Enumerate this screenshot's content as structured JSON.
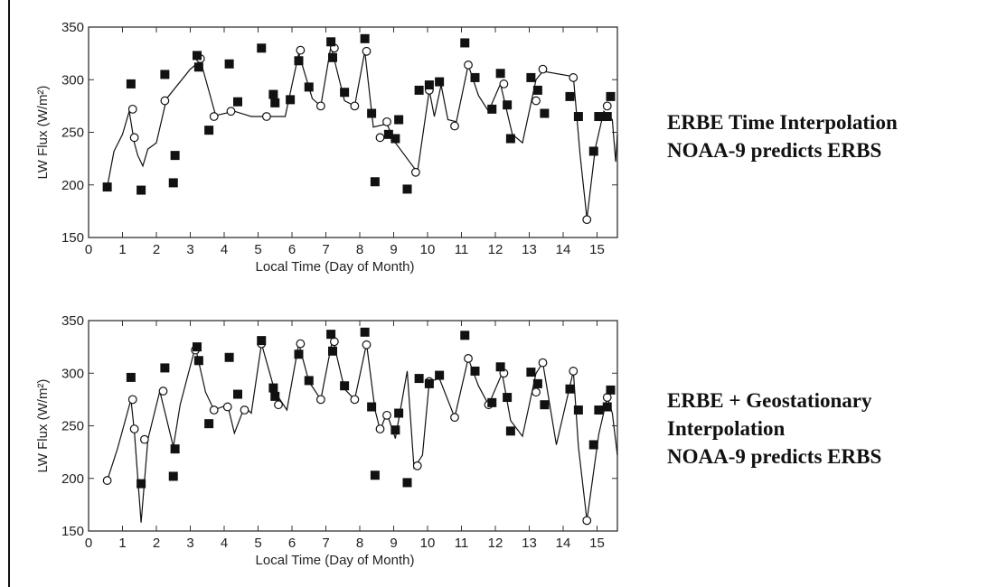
{
  "figure": {
    "captions": [
      {
        "lines": [
          "ERBE Time Interpolation",
          "NOAA-9  predicts ERBS"
        ]
      },
      {
        "lines": [
          "ERBE + Geostationary",
          "Interpolation",
          "NOAA-9  predicts ERBS"
        ]
      }
    ]
  },
  "colors": {
    "ink": "#111111",
    "frame": "#333333",
    "background": "#ffffff"
  },
  "chart_data": [
    {
      "type": "scatter",
      "title": "",
      "xlabel": "Local Time (Day of Month)",
      "ylabel": "LW Flux (W/m²)",
      "xlim": [
        0,
        15.6
      ],
      "ylim": [
        150,
        350
      ],
      "xticks": [
        "0",
        "1",
        "2",
        "3",
        "4",
        "5",
        "6",
        "7",
        "8",
        "9",
        "10",
        "11",
        "12",
        "13",
        "14",
        "15"
      ],
      "yticks": [
        "150",
        "200",
        "250",
        "300",
        "350"
      ],
      "grid": false,
      "series": [
        {
          "marker": "filled-square",
          "points": [
            [
              0.55,
              198
            ],
            [
              1.25,
              296
            ],
            [
              1.55,
              195
            ],
            [
              2.25,
              305
            ],
            [
              2.5,
              202
            ],
            [
              2.55,
              228
            ],
            [
              3.2,
              323
            ],
            [
              3.25,
              312
            ],
            [
              3.55,
              252
            ],
            [
              4.15,
              315
            ],
            [
              4.4,
              279
            ],
            [
              5.1,
              330
            ],
            [
              5.45,
              286
            ],
            [
              5.5,
              278
            ],
            [
              5.95,
              281
            ],
            [
              6.2,
              318
            ],
            [
              6.5,
              293
            ],
            [
              7.15,
              336
            ],
            [
              7.2,
              321
            ],
            [
              7.55,
              288
            ],
            [
              8.15,
              339
            ],
            [
              8.35,
              268
            ],
            [
              8.45,
              203
            ],
            [
              8.85,
              248
            ],
            [
              9.05,
              244
            ],
            [
              9.15,
              262
            ],
            [
              9.4,
              196
            ],
            [
              9.75,
              290
            ],
            [
              10.05,
              295
            ],
            [
              10.35,
              298
            ],
            [
              11.1,
              335
            ],
            [
              11.4,
              302
            ],
            [
              11.9,
              272
            ],
            [
              12.15,
              306
            ],
            [
              12.35,
              276
            ],
            [
              12.45,
              244
            ],
            [
              13.05,
              302
            ],
            [
              13.25,
              290
            ],
            [
              13.45,
              268
            ],
            [
              14.2,
              284
            ],
            [
              14.45,
              265
            ],
            [
              14.9,
              232
            ],
            [
              15.05,
              265
            ],
            [
              15.3,
              265
            ],
            [
              15.4,
              284
            ]
          ]
        },
        {
          "marker": "open-circle",
          "points": [
            [
              1.3,
              272
            ],
            [
              1.35,
              245
            ],
            [
              2.25,
              280
            ],
            [
              3.3,
              320
            ],
            [
              3.7,
              265
            ],
            [
              4.2,
              270
            ],
            [
              5.25,
              265
            ],
            [
              6.25,
              328
            ],
            [
              6.85,
              275
            ],
            [
              7.25,
              330
            ],
            [
              7.85,
              275
            ],
            [
              8.2,
              327
            ],
            [
              8.6,
              245
            ],
            [
              8.8,
              260
            ],
            [
              9.65,
              212
            ],
            [
              10.05,
              290
            ],
            [
              10.8,
              256
            ],
            [
              11.2,
              314
            ],
            [
              12.25,
              296
            ],
            [
              13.2,
              280
            ],
            [
              13.4,
              310
            ],
            [
              14.3,
              302
            ],
            [
              14.7,
              167
            ],
            [
              15.3,
              275
            ]
          ]
        },
        {
          "marker": "line",
          "points": [
            [
              0.55,
              198
            ],
            [
              0.75,
              232
            ],
            [
              1.0,
              248
            ],
            [
              1.2,
              270
            ],
            [
              1.35,
              240
            ],
            [
              1.45,
              228
            ],
            [
              1.6,
              218
            ],
            [
              1.75,
              234
            ],
            [
              2.0,
              240
            ],
            [
              2.3,
              282
            ],
            [
              3.0,
              310
            ],
            [
              3.3,
              318
            ],
            [
              3.5,
              295
            ],
            [
              3.75,
              266
            ],
            [
              4.3,
              270
            ],
            [
              4.8,
              265
            ],
            [
              5.8,
              265
            ],
            [
              6.2,
              325
            ],
            [
              6.6,
              282
            ],
            [
              6.85,
              275
            ],
            [
              7.15,
              332
            ],
            [
              7.55,
              280
            ],
            [
              7.85,
              275
            ],
            [
              8.15,
              327
            ],
            [
              8.4,
              255
            ],
            [
              8.8,
              258
            ],
            [
              9.05,
              240
            ],
            [
              9.7,
              212
            ],
            [
              10.05,
              290
            ],
            [
              10.2,
              265
            ],
            [
              10.4,
              295
            ],
            [
              10.6,
              262
            ],
            [
              10.85,
              260
            ],
            [
              11.2,
              314
            ],
            [
              11.5,
              285
            ],
            [
              11.8,
              270
            ],
            [
              12.15,
              296
            ],
            [
              12.5,
              248
            ],
            [
              12.8,
              240
            ],
            [
              13.2,
              300
            ],
            [
              13.4,
              308
            ],
            [
              14.3,
              303
            ],
            [
              14.5,
              228
            ],
            [
              14.7,
              168
            ],
            [
              14.95,
              235
            ],
            [
              15.2,
              270
            ],
            [
              15.45,
              262
            ],
            [
              15.55,
              222
            ],
            [
              15.6,
              248
            ]
          ]
        }
      ]
    },
    {
      "type": "scatter",
      "title": "",
      "xlabel": "Local Time (Day of Month)",
      "ylabel": "LW Flux (W/m²)",
      "xlim": [
        0,
        15.6
      ],
      "ylim": [
        150,
        350
      ],
      "xticks": [
        "0",
        "1",
        "2",
        "3",
        "4",
        "5",
        "6",
        "7",
        "8",
        "9",
        "10",
        "11",
        "12",
        "13",
        "14",
        "15"
      ],
      "yticks": [
        "150",
        "200",
        "250",
        "300",
        "350"
      ],
      "grid": false,
      "series": [
        {
          "marker": "filled-square",
          "points": [
            [
              1.25,
              296
            ],
            [
              1.55,
              195
            ],
            [
              2.25,
              305
            ],
            [
              2.5,
              202
            ],
            [
              2.55,
              228
            ],
            [
              3.2,
              325
            ],
            [
              3.25,
              312
            ],
            [
              3.55,
              252
            ],
            [
              4.15,
              315
            ],
            [
              4.4,
              280
            ],
            [
              5.1,
              331
            ],
            [
              5.45,
              286
            ],
            [
              5.5,
              278
            ],
            [
              6.2,
              318
            ],
            [
              6.5,
              293
            ],
            [
              7.15,
              337
            ],
            [
              7.2,
              321
            ],
            [
              7.55,
              288
            ],
            [
              8.15,
              339
            ],
            [
              8.35,
              268
            ],
            [
              8.45,
              203
            ],
            [
              9.05,
              246
            ],
            [
              9.15,
              262
            ],
            [
              9.4,
              196
            ],
            [
              9.75,
              295
            ],
            [
              10.05,
              290
            ],
            [
              10.35,
              298
            ],
            [
              11.1,
              336
            ],
            [
              11.4,
              302
            ],
            [
              11.9,
              272
            ],
            [
              12.15,
              306
            ],
            [
              12.35,
              277
            ],
            [
              12.45,
              245
            ],
            [
              13.05,
              301
            ],
            [
              13.25,
              290
            ],
            [
              13.45,
              270
            ],
            [
              14.2,
              285
            ],
            [
              14.45,
              265
            ],
            [
              14.9,
              232
            ],
            [
              15.05,
              265
            ],
            [
              15.3,
              268
            ],
            [
              15.4,
              284
            ]
          ]
        },
        {
          "marker": "open-circle",
          "points": [
            [
              0.55,
              198
            ],
            [
              1.3,
              275
            ],
            [
              1.35,
              247
            ],
            [
              1.65,
              237
            ],
            [
              2.2,
              283
            ],
            [
              3.15,
              322
            ],
            [
              3.7,
              265
            ],
            [
              4.1,
              268
            ],
            [
              4.6,
              265
            ],
            [
              5.1,
              328
            ],
            [
              5.6,
              270
            ],
            [
              6.25,
              328
            ],
            [
              6.85,
              275
            ],
            [
              7.25,
              330
            ],
            [
              7.85,
              275
            ],
            [
              8.2,
              327
            ],
            [
              8.6,
              247
            ],
            [
              8.8,
              260
            ],
            [
              9.7,
              212
            ],
            [
              10.05,
              292
            ],
            [
              10.8,
              258
            ],
            [
              11.2,
              314
            ],
            [
              11.8,
              270
            ],
            [
              12.25,
              300
            ],
            [
              13.2,
              282
            ],
            [
              13.4,
              310
            ],
            [
              14.3,
              302
            ],
            [
              14.7,
              160
            ],
            [
              15.3,
              277
            ]
          ]
        },
        {
          "marker": "line",
          "points": [
            [
              0.55,
              198
            ],
            [
              0.85,
              228
            ],
            [
              1.25,
              275
            ],
            [
              1.35,
              245
            ],
            [
              1.55,
              158
            ],
            [
              1.75,
              237
            ],
            [
              2.1,
              283
            ],
            [
              2.5,
              230
            ],
            [
              2.7,
              270
            ],
            [
              3.15,
              325
            ],
            [
              3.45,
              282
            ],
            [
              3.7,
              265
            ],
            [
              4.1,
              270
            ],
            [
              4.3,
              243
            ],
            [
              4.6,
              268
            ],
            [
              4.8,
              262
            ],
            [
              5.1,
              328
            ],
            [
              5.5,
              282
            ],
            [
              5.85,
              265
            ],
            [
              6.2,
              328
            ],
            [
              6.5,
              292
            ],
            [
              6.85,
              275
            ],
            [
              7.2,
              333
            ],
            [
              7.55,
              285
            ],
            [
              7.85,
              275
            ],
            [
              8.2,
              328
            ],
            [
              8.45,
              265
            ],
            [
              8.6,
              246
            ],
            [
              8.8,
              262
            ],
            [
              9.05,
              238
            ],
            [
              9.4,
              302
            ],
            [
              9.6,
              210
            ],
            [
              9.85,
              222
            ],
            [
              10.05,
              292
            ],
            [
              10.35,
              295
            ],
            [
              10.8,
              258
            ],
            [
              11.2,
              314
            ],
            [
              11.5,
              288
            ],
            [
              11.8,
              270
            ],
            [
              12.2,
              300
            ],
            [
              12.45,
              255
            ],
            [
              12.8,
              240
            ],
            [
              13.2,
              300
            ],
            [
              13.4,
              310
            ],
            [
              13.8,
              232
            ],
            [
              14.3,
              302
            ],
            [
              14.45,
              230
            ],
            [
              14.7,
              160
            ],
            [
              15.05,
              242
            ],
            [
              15.3,
              277
            ],
            [
              15.45,
              262
            ],
            [
              15.6,
              222
            ]
          ]
        }
      ]
    }
  ]
}
